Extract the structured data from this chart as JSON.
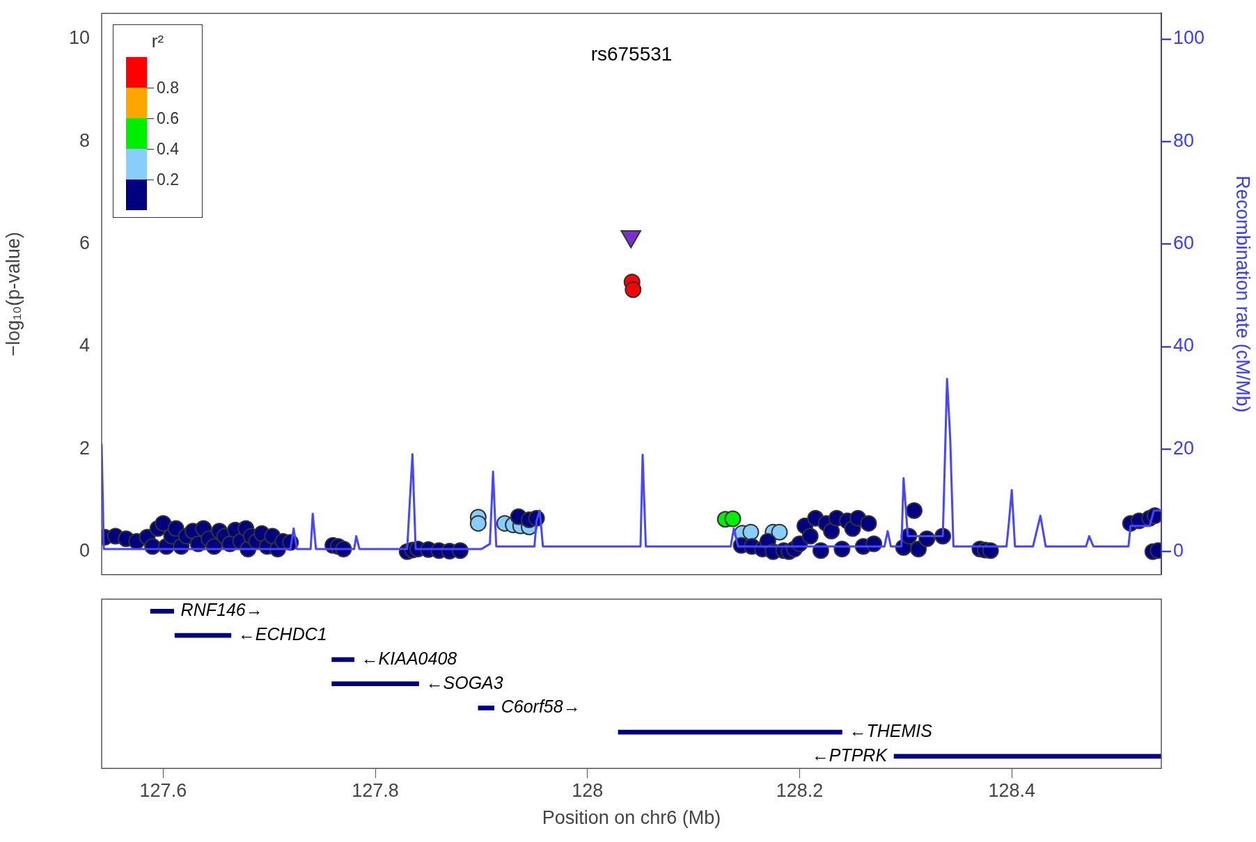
{
  "chart_data": [
    {
      "type": "scatter",
      "ylabel": "−log₁₀(p-value)",
      "y2label": "Recombination rate (cM/Mb)",
      "xlim": [
        127.542,
        128.541
      ],
      "xticks": [
        127.6,
        127.8,
        128,
        128.2,
        128.4
      ],
      "ylim": [
        -0.45,
        10.5
      ],
      "yticks": [
        0,
        2,
        4,
        6,
        8,
        10
      ],
      "y2lim": [
        -4.5,
        105
      ],
      "y2ticks": [
        0,
        20,
        40,
        60,
        80,
        100
      ],
      "tick_labels": "y",
      "grid": false,
      "legend": false,
      "annotations": [
        "rs675531",
        "r²",
        "0.8",
        "0.6",
        "0.4",
        "0.2"
      ],
      "series": [
        {
          "type": "line",
          "axis": "y2",
          "color": "#4646ff",
          "x": [
            127.542,
            127.544,
            127.72,
            127.723,
            127.726,
            127.739,
            127.741,
            127.744,
            127.78,
            127.782,
            127.785,
            127.83,
            127.835,
            127.838,
            127.9,
            127.908,
            127.911,
            127.914,
            127.95,
            127.952,
            127.955,
            127.958,
            128.05,
            128.052,
            128.055,
            128.135,
            128.138,
            128.142,
            128.28,
            128.283,
            128.286,
            128.296,
            128.298,
            128.302,
            128.335,
            128.339,
            128.342,
            128.345,
            128.395,
            128.397,
            128.4,
            128.403,
            128.42,
            128.427,
            128.432,
            128.47,
            128.473,
            128.477,
            128.51,
            128.512,
            128.515,
            128.53,
            128.534,
            128.541
          ],
          "values": [
            21,
            0.5,
            0.5,
            4.5,
            0.5,
            0.5,
            7.4,
            0.5,
            0.5,
            3,
            0.5,
            0.5,
            19,
            0.5,
            0.5,
            1.5,
            15.6,
            1,
            1,
            6,
            8,
            1,
            1,
            18.9,
            1,
            1,
            4.5,
            1,
            1,
            4,
            1,
            1,
            14.3,
            3,
            3,
            33.7,
            22,
            1,
            1,
            5,
            12,
            1,
            1,
            7,
            1,
            1,
            3,
            1,
            1,
            5,
            5,
            5,
            8,
            8
          ]
        },
        {
          "type": "scatter",
          "marker": "circle",
          "x": [
            127.545,
            127.555,
            127.565,
            127.575,
            127.585,
            127.59,
            127.595,
            127.6,
            127.603,
            127.608,
            127.612,
            127.617,
            127.622,
            127.628,
            127.633,
            127.638,
            127.643,
            127.648,
            127.653,
            127.658,
            127.663,
            127.668,
            127.673,
            127.678,
            127.68,
            127.683,
            127.688,
            127.693,
            127.698,
            127.703,
            127.708,
            127.713,
            127.72,
            127.76,
            127.765,
            127.77,
            127.83,
            127.835,
            127.84,
            127.85,
            127.86,
            127.87,
            127.88,
            127.897,
            127.897,
            127.922,
            127.93,
            127.937,
            127.945,
            127.935,
            127.945,
            127.952,
            128.042,
            128.043,
            128.13,
            128.137,
            128.146,
            128.154,
            128.175,
            128.181,
            128.145,
            128.155,
            128.165,
            128.17,
            128.175,
            128.185,
            128.19,
            128.195,
            128.2,
            128.205,
            128.21,
            128.215,
            128.22,
            128.225,
            128.23,
            128.235,
            128.24,
            128.245,
            128.25,
            128.255,
            128.26,
            128.265,
            128.27,
            128.298,
            128.303,
            128.308,
            128.312,
            128.32,
            128.335,
            128.37,
            128.375,
            128.38,
            128.512,
            128.52,
            128.53,
            128.535,
            128.533,
            128.538
          ],
          "values": [
            0.28,
            0.3,
            0.25,
            0.2,
            0.28,
            0.1,
            0.45,
            0.55,
            0.1,
            0.3,
            0.45,
            0.1,
            0.3,
            0.4,
            0.15,
            0.45,
            0.25,
            0.1,
            0.4,
            0.3,
            0.15,
            0.42,
            0.2,
            0.45,
            0.05,
            0.3,
            0.2,
            0.35,
            0.1,
            0.3,
            0.05,
            0.2,
            0.18,
            0.12,
            0.1,
            0.05,
            0,
            0.03,
            0.05,
            0.04,
            0.02,
            0.01,
            0.02,
            0.67,
            0.55,
            0.55,
            0.52,
            0.5,
            0.48,
            0.68,
            0.62,
            0.65,
            5.26,
            5.11,
            0.63,
            0.64,
            0.36,
            0.38,
            0.38,
            0.38,
            0.12,
            0.1,
            0.05,
            0.2,
            0,
            0.02,
            0,
            0.05,
            0.15,
            0.5,
            0.3,
            0.65,
            0.02,
            0.55,
            0.4,
            0.65,
            0.05,
            0.6,
            0.45,
            0.65,
            0.1,
            0.55,
            0.15,
            0.08,
            0.3,
            0.8,
            0.05,
            0.25,
            0.3,
            0.05,
            0.03,
            0.02,
            0.55,
            0.6,
            0.65,
            0.7,
            0,
            0.02
          ],
          "colors": [
            "#000080",
            "#000080",
            "#000080",
            "#000080",
            "#000080",
            "#000080",
            "#000080",
            "#000080",
            "#000080",
            "#000080",
            "#000080",
            "#000080",
            "#000080",
            "#000080",
            "#000080",
            "#000080",
            "#000080",
            "#000080",
            "#000080",
            "#000080",
            "#000080",
            "#000080",
            "#000080",
            "#000080",
            "#000080",
            "#000080",
            "#000080",
            "#000080",
            "#000080",
            "#000080",
            "#000080",
            "#000080",
            "#000080",
            "#000080",
            "#000080",
            "#000080",
            "#000080",
            "#000080",
            "#000080",
            "#000080",
            "#000080",
            "#000080",
            "#000080",
            "#87cefa",
            "#87cefa",
            "#87cefa",
            "#87cefa",
            "#87cefa",
            "#87cefa",
            "#000080",
            "#000080",
            "#000080",
            "#ff0000",
            "#ff0000",
            "#00ee00",
            "#00ee00",
            "#87cefa",
            "#87cefa",
            "#87cefa",
            "#87cefa",
            "#000080",
            "#000080",
            "#000080",
            "#000080",
            "#000080",
            "#000080",
            "#000080",
            "#000080",
            "#000080",
            "#000080",
            "#000080",
            "#000080",
            "#000080",
            "#000080",
            "#000080",
            "#000080",
            "#000080",
            "#000080",
            "#000080",
            "#000080",
            "#000080",
            "#000080",
            "#000080",
            "#000080",
            "#000080",
            "#000080",
            "#000080",
            "#000080",
            "#000080",
            "#000080",
            "#000080",
            "#000080",
            "#000080",
            "#000080",
            "#000080",
            "#000080",
            "#000080",
            "#000080"
          ]
        },
        {
          "type": "scatter",
          "marker": "triangle",
          "color": "#7b2fd0",
          "x": [
            128.041
          ],
          "values": [
            6.15
          ]
        }
      ]
    },
    {
      "type": "bar",
      "orientation": "horizontal",
      "categories": [
        null,
        null,
        null,
        null,
        null,
        null,
        null
      ],
      "xlim": [
        127.542,
        128.541
      ],
      "xticks": [
        127.6,
        127.8,
        128,
        128.2,
        128.4
      ],
      "xlabel": "Position on chr6 (Mb)",
      "tick_labels": "x",
      "grid": false,
      "legend": false,
      "color": "#000080",
      "base": [
        127.588,
        127.611,
        127.759,
        127.759,
        127.897,
        128.029,
        128.289
      ],
      "values": [
        0.022,
        0.053,
        0.021,
        0.082,
        0.015,
        0.211,
        0.252
      ],
      "value_labels": [
        "RNF146→",
        "←ECHDC1",
        "←KIAA0408",
        "←SOGA3",
        "C6orf58→",
        "←THEMIS",
        "←PTPRK"
      ]
    }
  ]
}
